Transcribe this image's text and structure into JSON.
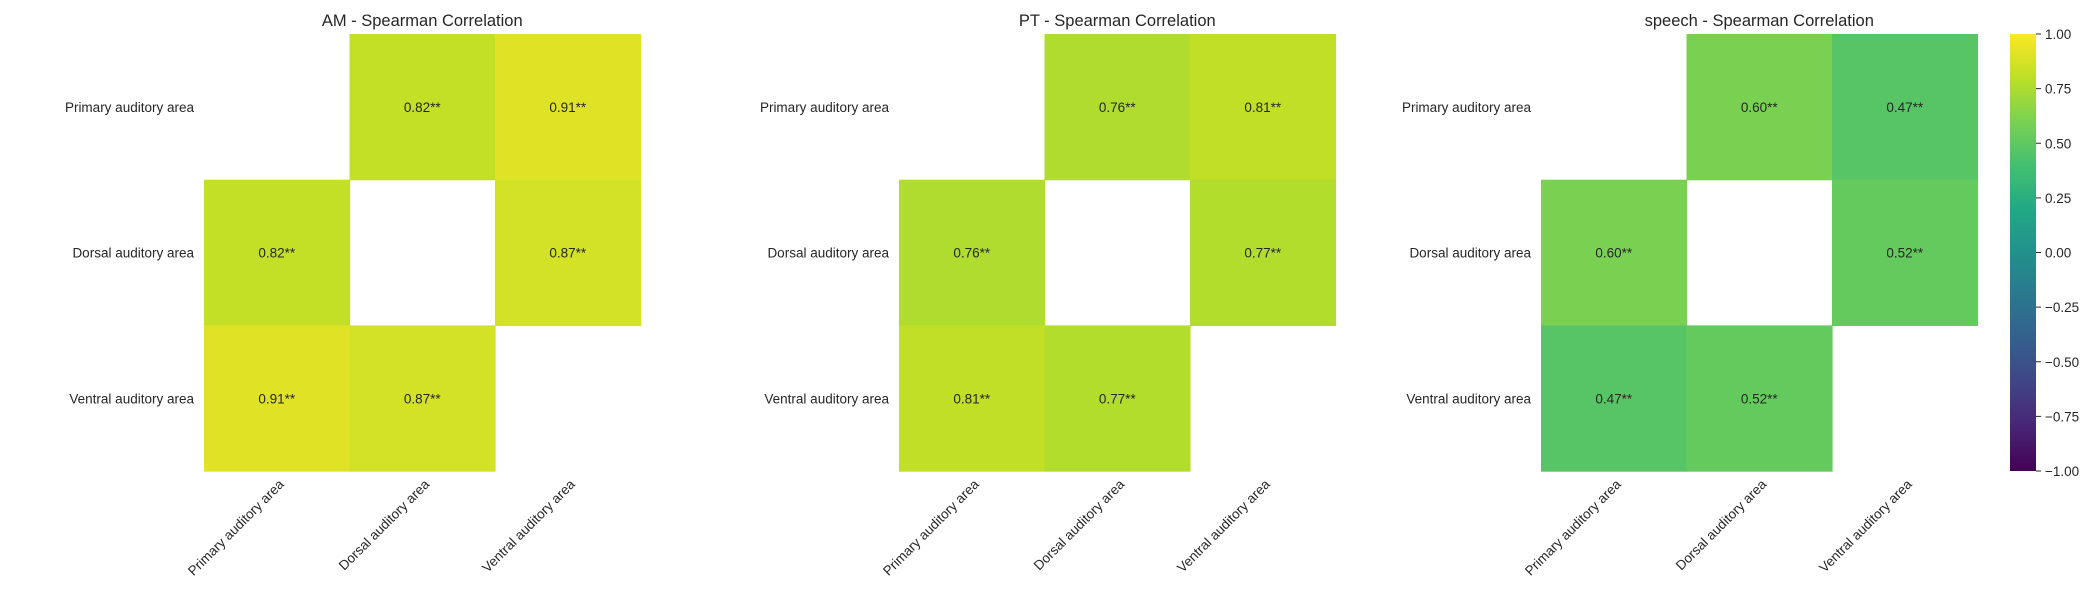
{
  "chart_data": [
    {
      "type": "heatmap",
      "title": "AM - Spearman Correlation",
      "row_labels": [
        "Primary auditory area",
        "Dorsal auditory area",
        "Ventral auditory area"
      ],
      "col_labels": [
        "Primary auditory area",
        "Dorsal auditory area",
        "Ventral auditory area"
      ],
      "values": [
        [
          null,
          0.82,
          0.91
        ],
        [
          0.82,
          null,
          0.87
        ],
        [
          0.91,
          0.87,
          null
        ]
      ],
      "labels": [
        [
          "",
          "0.82**",
          "0.91**"
        ],
        [
          "0.82**",
          "",
          "0.87**"
        ],
        [
          "0.91**",
          "0.87**",
          ""
        ]
      ]
    },
    {
      "type": "heatmap",
      "title": "PT - Spearman Correlation",
      "row_labels": [
        "Primary auditory area",
        "Dorsal auditory area",
        "Ventral auditory area"
      ],
      "col_labels": [
        "Primary auditory area",
        "Dorsal auditory area",
        "Ventral auditory area"
      ],
      "values": [
        [
          null,
          0.76,
          0.81
        ],
        [
          0.76,
          null,
          0.77
        ],
        [
          0.81,
          0.77,
          null
        ]
      ],
      "labels": [
        [
          "",
          "0.76**",
          "0.81**"
        ],
        [
          "0.76**",
          "",
          "0.77**"
        ],
        [
          "0.81**",
          "0.77**",
          ""
        ]
      ]
    },
    {
      "type": "heatmap",
      "title": "speech - Spearman Correlation",
      "row_labels": [
        "Primary auditory area",
        "Dorsal auditory area",
        "Ventral auditory area"
      ],
      "col_labels": [
        "Primary auditory area",
        "Dorsal auditory area",
        "Ventral auditory area"
      ],
      "values": [
        [
          null,
          0.6,
          0.47
        ],
        [
          0.6,
          null,
          0.52
        ],
        [
          0.47,
          0.52,
          null
        ]
      ],
      "labels": [
        [
          "",
          "0.60**",
          "0.47**"
        ],
        [
          "0.60**",
          "",
          "0.52**"
        ],
        [
          "0.47**",
          "0.52**",
          ""
        ]
      ]
    }
  ],
  "colorbar": {
    "colormap": "viridis",
    "range": [
      -1.0,
      1.0
    ],
    "ticks": [
      1.0,
      0.75,
      0.5,
      0.25,
      0.0,
      -0.25,
      -0.5,
      -0.75,
      -1.0
    ],
    "tick_labels": [
      "1.00",
      "0.75",
      "0.50",
      "0.25",
      "0.00",
      "−0.25",
      "−0.50",
      "−0.75",
      "−1.00"
    ]
  }
}
